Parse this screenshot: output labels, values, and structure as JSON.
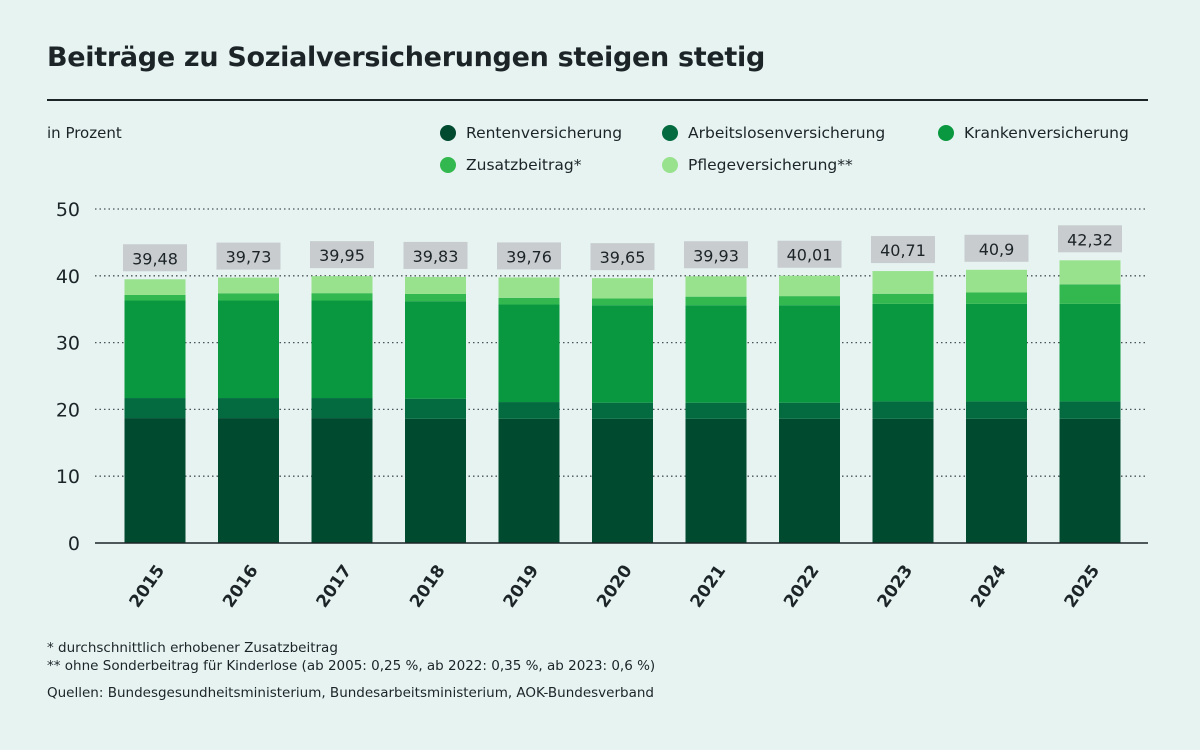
{
  "title": "Beiträge zu Sozialversicherungen steigen stetig",
  "unit_label": "in Prozent",
  "footnotes": [
    "* durchschnittlich erhobener Zusatzbeitrag",
    "** ohne Sonderbeitrag für Kinderlose (ab 2005: 0,25 %, ab 2022: 0,35 %, ab 2023: 0,6 %)"
  ],
  "sources": "Quellen: Bundesgesundheitsministerium, Bundesarbeitsministerium, AOK-Bundesverband",
  "colors": {
    "background": "#e6f3f1",
    "label_box": "#c8ccce",
    "text": "#1c2428"
  },
  "chart_data": {
    "type": "bar",
    "stacked": true,
    "title": "Beiträge zu Sozialversicherungen steigen stetig",
    "xlabel": "",
    "ylabel": "in Prozent",
    "ylim": [
      0,
      50
    ],
    "yticks": [
      0,
      10,
      20,
      30,
      40,
      50
    ],
    "grid": "horizontal-dotted",
    "legend_position": "top-right",
    "categories": [
      "2015",
      "2016",
      "2017",
      "2018",
      "2019",
      "2020",
      "2021",
      "2022",
      "2023",
      "2024",
      "2025"
    ],
    "series": [
      {
        "name": "Rentenversicherung",
        "color": "#004a30",
        "values": [
          18.7,
          18.7,
          18.7,
          18.6,
          18.6,
          18.6,
          18.6,
          18.6,
          18.6,
          18.6,
          18.6
        ]
      },
      {
        "name": "Arbeitslosenversicherung",
        "color": "#036b3f",
        "values": [
          3.0,
          3.0,
          3.0,
          3.0,
          2.5,
          2.4,
          2.4,
          2.4,
          2.6,
          2.6,
          2.6
        ]
      },
      {
        "name": "Krankenversicherung",
        "color": "#09983f",
        "values": [
          14.6,
          14.6,
          14.6,
          14.6,
          14.6,
          14.6,
          14.6,
          14.6,
          14.6,
          14.6,
          14.6
        ]
      },
      {
        "name": "Zusatzbeitrag*",
        "color": "#33b84f",
        "values": [
          0.83,
          1.08,
          1.1,
          1.08,
          1.01,
          1.0,
          1.28,
          1.36,
          1.51,
          1.7,
          2.92
        ]
      },
      {
        "name": "Pflegeversicherung**",
        "color": "#98e28e",
        "values": [
          2.35,
          2.35,
          2.55,
          2.55,
          3.05,
          3.05,
          3.05,
          3.05,
          3.4,
          3.4,
          3.6
        ]
      }
    ],
    "totals_labels": [
      "39,48",
      "39,73",
      "39,95",
      "39,83",
      "39,76",
      "39,65",
      "39,93",
      "40,01",
      "40,71",
      "40,9",
      "42,32"
    ],
    "totals": [
      39.48,
      39.73,
      39.95,
      39.83,
      39.76,
      39.65,
      39.93,
      40.01,
      40.71,
      40.9,
      42.32
    ]
  }
}
